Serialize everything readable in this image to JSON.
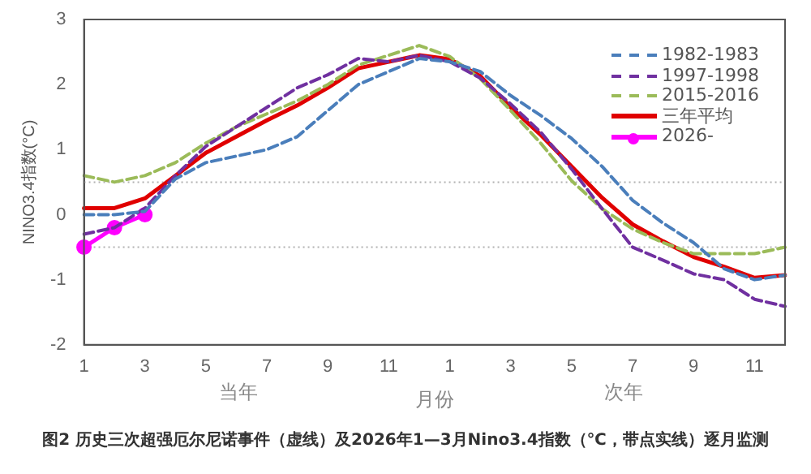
{
  "chart_data": {
    "type": "line",
    "title": "图2 历史三次超强厄尔尼诺事件（虚线）及2026年1—3月Nino3.4指数（℃，带点实线）逐月监测",
    "xlabel": "月份",
    "ylabel": "NINO3.4指数(°C)",
    "annotations": [
      "当年",
      "次年"
    ],
    "categories": [
      "1",
      null,
      "3",
      null,
      "5",
      null,
      "7",
      null,
      "9",
      null,
      "11",
      null,
      "1",
      null,
      "3",
      null,
      "5",
      null,
      "7",
      null,
      "9",
      null,
      "11",
      null
    ],
    "series": [
      {
        "name": "1982-1983",
        "color": "#4a7ebb",
        "line_style": "dashed",
        "marker": "none",
        "values": [
          0,
          0,
          0.05,
          0.55,
          0.8,
          0.9,
          1.0,
          1.2,
          1.6,
          2.0,
          2.2,
          2.4,
          2.35,
          2.2,
          1.83,
          1.52,
          1.17,
          0.74,
          0.22,
          -0.13,
          -0.43,
          -0.83,
          -1.0,
          -0.93
        ]
      },
      {
        "name": "1997-1998",
        "color": "#7030a0",
        "line_style": "dashed",
        "marker": "none",
        "values": [
          -0.3,
          -0.2,
          0.1,
          0.6,
          1.05,
          1.35,
          1.65,
          1.95,
          2.15,
          2.4,
          2.35,
          2.45,
          2.35,
          2.1,
          1.7,
          1.26,
          0.7,
          0.09,
          -0.5,
          -0.7,
          -0.91,
          -1.0,
          -1.3,
          -1.41
        ]
      },
      {
        "name": "2015-2016",
        "color": "#9bbb59",
        "line_style": "dashed",
        "marker": "none",
        "values": [
          0.6,
          0.5,
          0.6,
          0.8,
          1.1,
          1.35,
          1.55,
          1.75,
          2.0,
          2.3,
          2.45,
          2.6,
          2.43,
          2.09,
          1.6,
          1.09,
          0.52,
          0.09,
          -0.22,
          -0.43,
          -0.6,
          -0.6,
          -0.6,
          -0.5
        ]
      },
      {
        "name": "三年平均",
        "color": "#e00000",
        "line_style": "solid",
        "marker": "none",
        "values": [
          0.1,
          0.1,
          0.25,
          0.6,
          0.95,
          1.2,
          1.45,
          1.68,
          1.95,
          2.25,
          2.35,
          2.45,
          2.39,
          2.13,
          1.65,
          1.22,
          0.74,
          0.26,
          -0.15,
          -0.41,
          -0.65,
          -0.8,
          -0.97,
          -0.93
        ]
      },
      {
        "name": "2026-",
        "color": "#ff00ff",
        "line_style": "solid",
        "marker": "circle",
        "values": [
          -0.5,
          -0.2,
          0.0,
          null,
          null,
          null,
          null,
          null,
          null,
          null,
          null,
          null,
          null,
          null,
          null,
          null,
          null,
          null,
          null,
          null,
          null,
          null,
          null,
          null
        ]
      }
    ],
    "ylim": [
      -2,
      3
    ],
    "yticks": [
      -2,
      -1,
      0,
      1,
      2,
      3
    ],
    "grid": false,
    "legend": "top right",
    "ref_lines": [
      {
        "axis": "y",
        "value": 0.5,
        "color": "#b0b0b0",
        "line_style": "dotted"
      },
      {
        "axis": "y",
        "value": -0.5,
        "color": "#b0b0b0",
        "line_style": "dotted"
      }
    ]
  }
}
